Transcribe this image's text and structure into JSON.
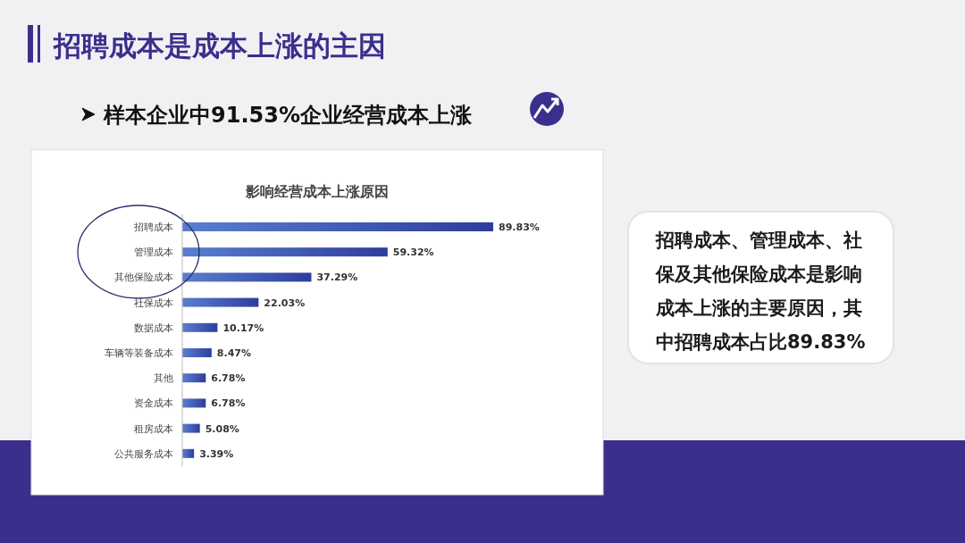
{
  "chart_data": {
    "type": "bar",
    "orientation": "horizontal",
    "title": "招聘成本是成本上涨的主因",
    "subtitle": "样本企业中91.53%企业经营成本上涨",
    "categories": [
      "招聘成本",
      "管理成本",
      "其他保险成本",
      "社保成本",
      "数据成本",
      "车辆等装备成本",
      "其他",
      "资金成本",
      "租房成本",
      "公共服务成本"
    ],
    "values": [
      89.83,
      59.32,
      37.29,
      22.03,
      10.17,
      8.47,
      6.78,
      6.78,
      5.08,
      3.39
    ],
    "value_labels": [
      "89.83%",
      "59.32%",
      "37.29%",
      "22.03%",
      "10.17%",
      "8.47%",
      "6.78%",
      "6.78%",
      "5.08%",
      "3.39%"
    ],
    "color": "#2e3d9c",
    "tick_labels": "y",
    "annotations": [
      "影响经营成本上涨原因",
      "招聘成本、管理成本、社保及其他保险成本是影响成本上涨的主要原因，其中招聘成本占比89.83%"
    ]
  }
}
